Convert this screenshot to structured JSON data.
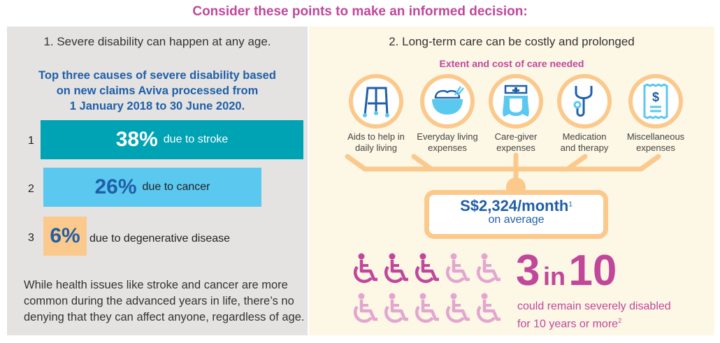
{
  "title": "Consider these points to make an informed decision:",
  "left": {
    "heading": "1.  Severe disability can happen at any age.",
    "subheading": [
      "Top three causes of severe disability based",
      "on new claims Aviva processed from",
      "1 January 2018 to 30 June 2020."
    ],
    "bars": [
      {
        "rank": "1",
        "percent": "38%",
        "label": "due to stroke",
        "value": 38,
        "color": "#00a3b4"
      },
      {
        "rank": "2",
        "percent": "26%",
        "label": "due to cancer",
        "value": 26,
        "color": "#5bc8ef"
      },
      {
        "rank": "3",
        "percent": "6%",
        "label": "due to degenerative disease",
        "value": 6,
        "color": "#fbc98c"
      }
    ],
    "paragraph": [
      "While health issues like stroke and cancer are more",
      "common during the advanced years in life, there’s no",
      "denying that they can affect anyone, regardless of age."
    ]
  },
  "right": {
    "heading": "2.  Long-term care can be costly and prolonged",
    "subheading": "Extent and cost of care needed",
    "items": [
      {
        "icon": "walker-icon",
        "line1": "Aids to help in",
        "line2": "daily living"
      },
      {
        "icon": "rice-bowl-icon",
        "line1": "Everyday living",
        "line2": "expenses"
      },
      {
        "icon": "nurse-icon",
        "line1": "Care-giver",
        "line2": "expenses"
      },
      {
        "icon": "stethoscope-icon",
        "line1": "Medication",
        "line2": "and therapy"
      },
      {
        "icon": "receipt-icon",
        "line1": "Miscellaneous",
        "line2": "expenses"
      }
    ],
    "cost": {
      "amount": "S$2,324/month",
      "sup": "1",
      "note": "on average"
    },
    "stat": {
      "big1": "3",
      "mid": "in",
      "big2": "10",
      "line1": "could remain severely disabled",
      "line2": "for 10 years or more",
      "sup": "2",
      "highlighted": 3,
      "total": 10
    }
  },
  "colors": {
    "pink": "#c0479a",
    "lightpink": "#e3a6cf",
    "orange": "#fbc98c",
    "blue": "#1f5fa8"
  }
}
